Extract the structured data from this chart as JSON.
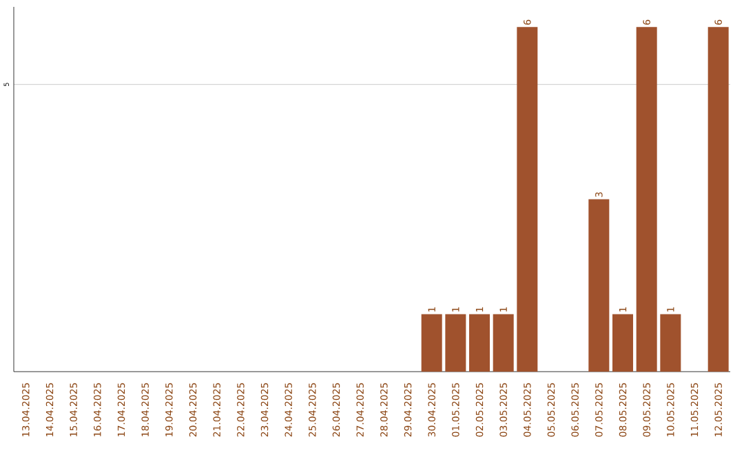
{
  "chart_data": {
    "type": "bar",
    "categories": [
      "13.04.2025",
      "14.04.2025",
      "15.04.2025",
      "16.04.2025",
      "17.04.2025",
      "18.04.2025",
      "19.04.2025",
      "20.04.2025",
      "21.04.2025",
      "22.04.2025",
      "23.04.2025",
      "24.04.2025",
      "25.04.2025",
      "26.04.2025",
      "27.04.2025",
      "28.04.2025",
      "29.04.2025",
      "30.04.2025",
      "01.05.2025",
      "02.05.2025",
      "03.05.2025",
      "04.05.2025",
      "05.05.2025",
      "06.05.2025",
      "07.05.2025",
      "08.05.2025",
      "09.05.2025",
      "10.05.2025",
      "11.05.2025",
      "12.05.2025"
    ],
    "values": [
      null,
      null,
      null,
      null,
      null,
      null,
      null,
      null,
      null,
      null,
      null,
      null,
      null,
      null,
      null,
      null,
      null,
      1,
      1,
      1,
      1,
      6,
      null,
      null,
      3,
      1,
      6,
      1,
      null,
      6
    ],
    "color": "#a0522d",
    "ylim": [
      0,
      6.35
    ],
    "yticks": [
      5
    ],
    "grid": "y",
    "data_labels": true
  }
}
